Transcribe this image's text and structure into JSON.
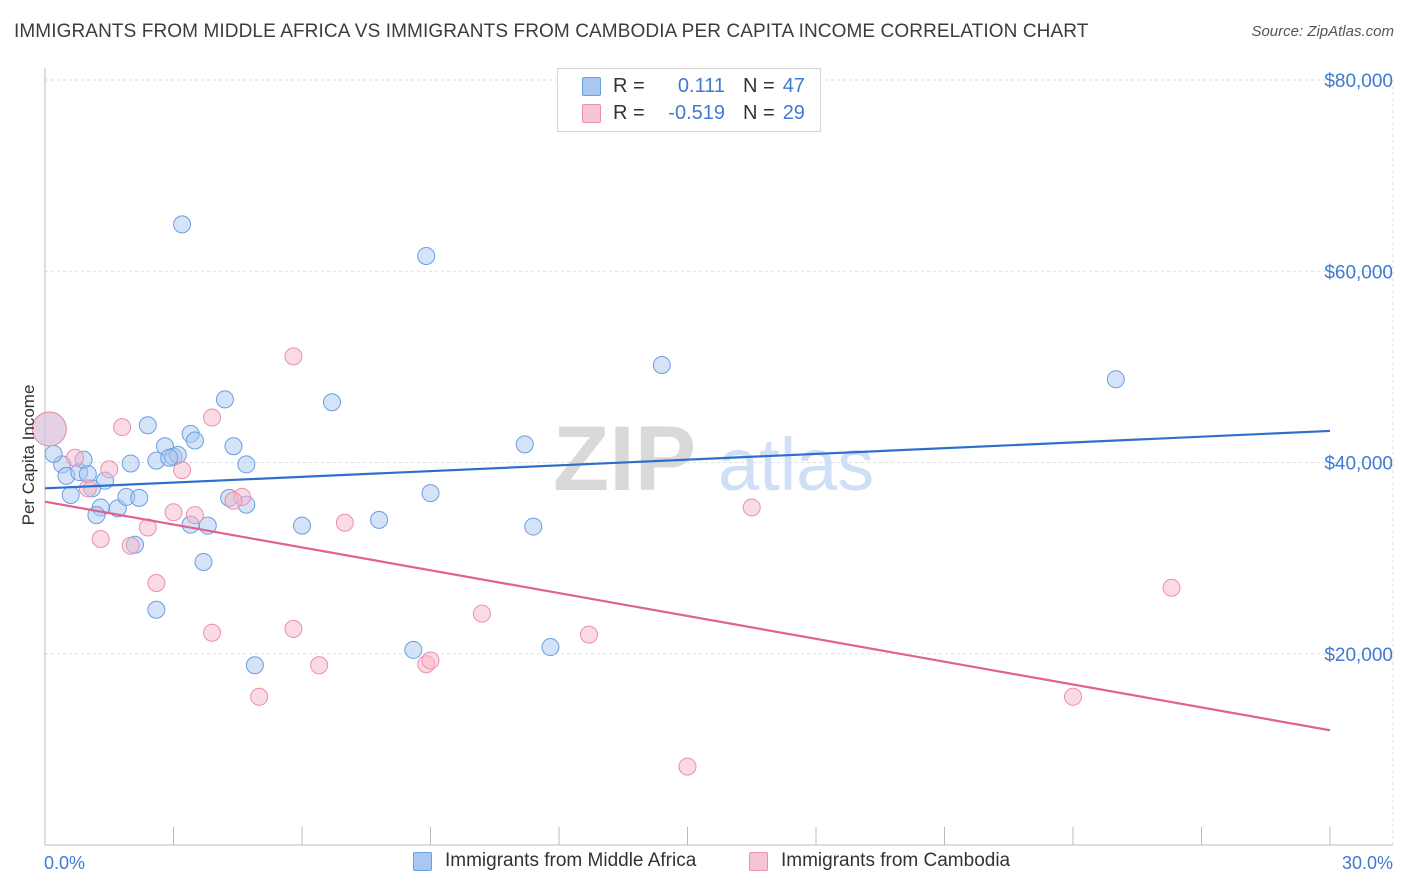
{
  "title": "IMMIGRANTS FROM MIDDLE AFRICA VS IMMIGRANTS FROM CAMBODIA PER CAPITA INCOME CORRELATION CHART",
  "source": "Source: ZipAtlas.com",
  "watermark": {
    "zip": "ZIP",
    "atlas": "atlas"
  },
  "legend": {
    "rows": [
      {
        "r_label": "R =",
        "r_value": "0.111",
        "n_label": "N =",
        "n_value": "47"
      },
      {
        "r_label": "R =",
        "r_value": "-0.519",
        "n_label": "N =",
        "n_value": "29"
      }
    ]
  },
  "colors": {
    "blue_fill": "#a9c7f0",
    "blue_stroke": "#6b9ee0",
    "blue_line": "#2f6fcc",
    "pink_fill": "#f6b8cc",
    "pink_stroke": "#ec8fab",
    "pink_line": "#e0628e",
    "axis_text": "#3f7ad3",
    "grid": "#dddddd"
  },
  "chart_data": {
    "type": "scatter",
    "xlabel": "",
    "ylabel": "Per Capita Income",
    "xlim": [
      0,
      30
    ],
    "ylim": [
      0,
      80000
    ],
    "x_tick_labels": [
      "0.0%",
      "30.0%"
    ],
    "y_ticks": [
      20000,
      40000,
      60000,
      80000
    ],
    "y_tick_labels": [
      "$20,000",
      "$40,000",
      "$60,000",
      "$80,000"
    ],
    "grid": true,
    "legend_position": "top-center",
    "series": [
      {
        "name": "Immigrants from Middle Africa",
        "color": "blue",
        "r": 0.111,
        "n": 47,
        "trend": {
          "x": [
            0,
            30
          ],
          "y": [
            37300,
            43300
          ]
        },
        "points": [
          [
            0.1,
            43500
          ],
          [
            0.4,
            39800
          ],
          [
            0.5,
            38600
          ],
          [
            0.8,
            39000
          ],
          [
            0.6,
            36600
          ],
          [
            1.1,
            37300
          ],
          [
            1.4,
            38100
          ],
          [
            1.3,
            35300
          ],
          [
            1.7,
            35200
          ],
          [
            1.9,
            36400
          ],
          [
            2.2,
            36300
          ],
          [
            1.2,
            34500
          ],
          [
            2.0,
            39900
          ],
          [
            2.4,
            43900
          ],
          [
            2.6,
            40200
          ],
          [
            2.8,
            41700
          ],
          [
            3.0,
            40600
          ],
          [
            3.2,
            64900
          ],
          [
            3.4,
            43000
          ],
          [
            3.5,
            42300
          ],
          [
            4.2,
            46600
          ],
          [
            4.4,
            41700
          ],
          [
            4.7,
            39800
          ],
          [
            4.3,
            36300
          ],
          [
            4.7,
            35600
          ],
          [
            3.4,
            33500
          ],
          [
            3.8,
            33400
          ],
          [
            2.1,
            31400
          ],
          [
            3.7,
            29600
          ],
          [
            2.6,
            24600
          ],
          [
            6.0,
            33400
          ],
          [
            6.7,
            46300
          ],
          [
            7.8,
            34000
          ],
          [
            4.9,
            18800
          ],
          [
            8.9,
            61600
          ],
          [
            9.0,
            36800
          ],
          [
            8.6,
            20400
          ],
          [
            11.2,
            41900
          ],
          [
            11.4,
            33300
          ],
          [
            11.8,
            20700
          ],
          [
            14.4,
            50200
          ],
          [
            25.0,
            48700
          ],
          [
            0.2,
            40900
          ],
          [
            1.0,
            38800
          ],
          [
            0.9,
            40300
          ],
          [
            3.1,
            40800
          ],
          [
            2.9,
            40500
          ]
        ]
      },
      {
        "name": "Immigrants from Cambodia",
        "color": "pink",
        "r": -0.519,
        "n": 29,
        "trend": {
          "x": [
            0,
            30
          ],
          "y": [
            35900,
            12000
          ]
        },
        "points": [
          [
            0.1,
            43500
          ],
          [
            0.7,
            40500
          ],
          [
            1.0,
            37300
          ],
          [
            1.5,
            39300
          ],
          [
            1.8,
            43700
          ],
          [
            1.3,
            32000
          ],
          [
            2.0,
            31300
          ],
          [
            2.4,
            33200
          ],
          [
            2.6,
            27400
          ],
          [
            3.0,
            34800
          ],
          [
            3.2,
            39200
          ],
          [
            3.5,
            34500
          ],
          [
            3.9,
            44700
          ],
          [
            3.9,
            22200
          ],
          [
            4.6,
            36400
          ],
          [
            5.0,
            15500
          ],
          [
            5.8,
            51100
          ],
          [
            5.8,
            22600
          ],
          [
            6.4,
            18800
          ],
          [
            7.0,
            33700
          ],
          [
            8.9,
            18900
          ],
          [
            9.0,
            19300
          ],
          [
            10.2,
            24200
          ],
          [
            12.7,
            22000
          ],
          [
            15.0,
            8200
          ],
          [
            16.5,
            35300
          ],
          [
            24.0,
            15500
          ],
          [
            26.3,
            26900
          ],
          [
            4.4,
            36000
          ]
        ]
      }
    ]
  }
}
